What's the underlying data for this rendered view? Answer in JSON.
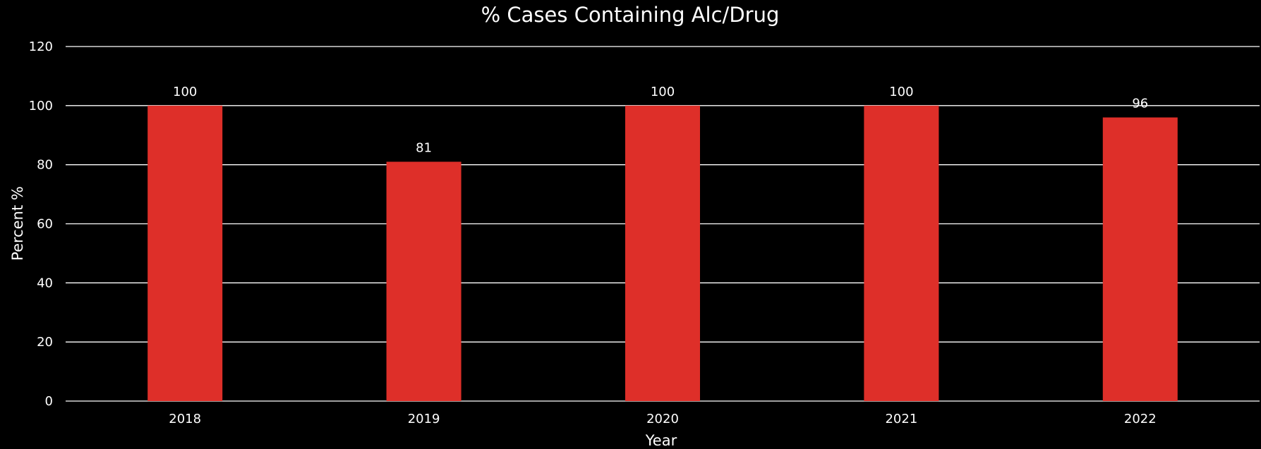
{
  "chart_data": {
    "type": "bar",
    "title": "% Cases Containing Alc/Drug",
    "xlabel": "Year",
    "ylabel": "Percent %",
    "categories": [
      "2018",
      "2019",
      "2020",
      "2021",
      "2022"
    ],
    "values": [
      100,
      81,
      100,
      100,
      96
    ],
    "data_labels": [
      "100",
      "81",
      "100",
      "100",
      "96"
    ],
    "ylim": [
      0,
      120
    ],
    "yticks": [
      "0",
      "20",
      "40",
      "60",
      "80",
      "100",
      "120"
    ],
    "grid": true,
    "legend": "none",
    "colors": {
      "bar": "#de2f29",
      "background": "#000000",
      "text": "#ffffff",
      "grid": "#ffffff"
    }
  }
}
